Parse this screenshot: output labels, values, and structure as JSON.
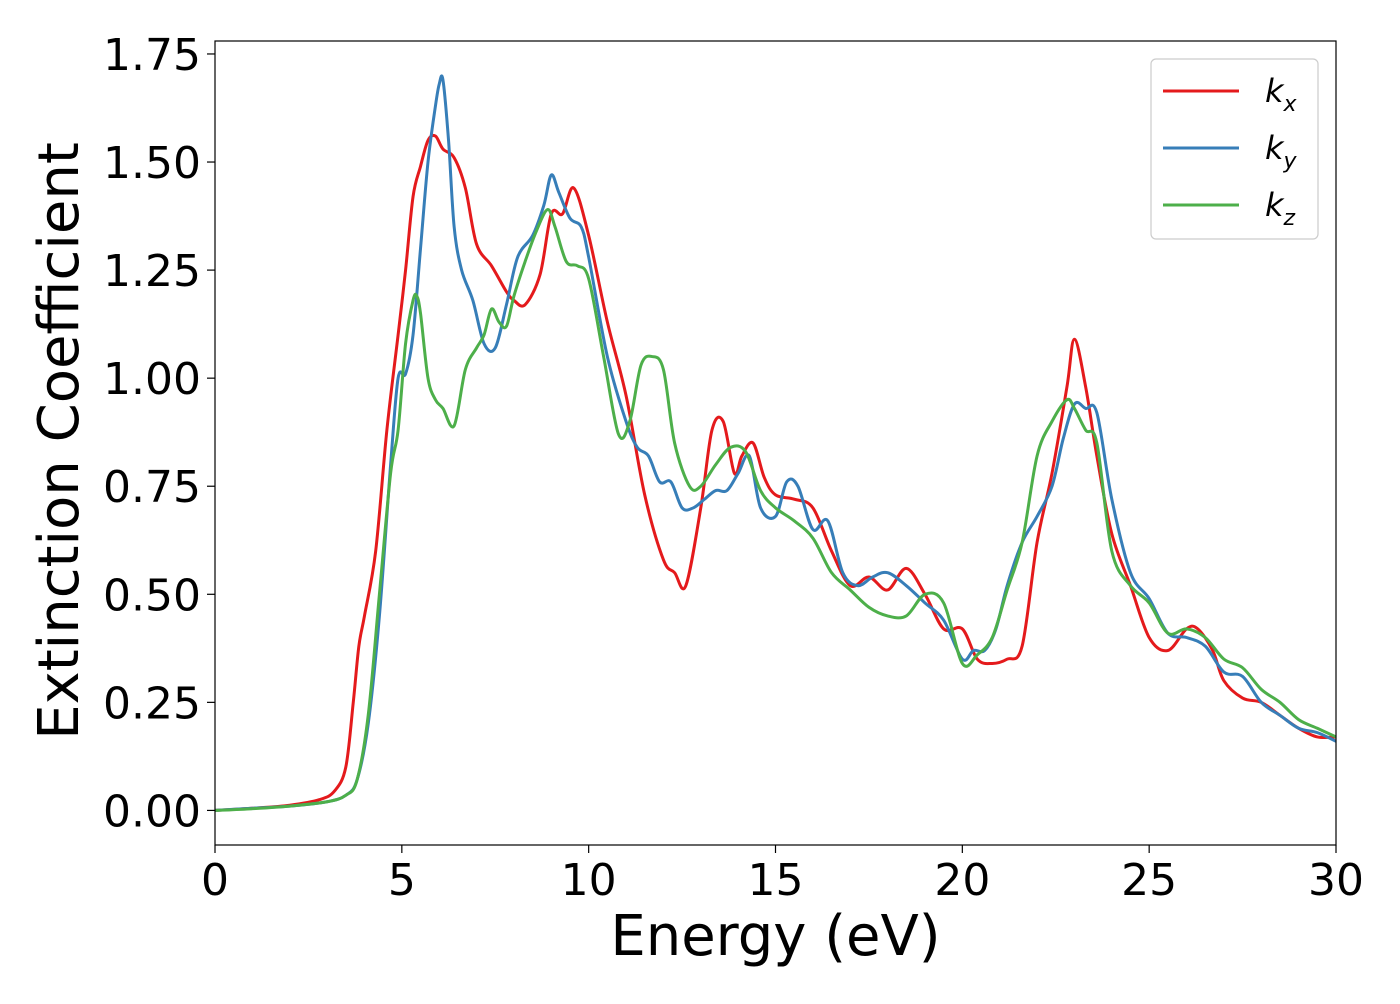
{
  "chart_data": {
    "type": "line",
    "title": "",
    "xlabel": "Energy (eV)",
    "ylabel": "Extinction Coefficient",
    "xlim": [
      0,
      30
    ],
    "ylim": [
      -0.08,
      1.78
    ],
    "xticks": [
      0,
      5,
      10,
      15,
      20,
      25,
      30
    ],
    "xtick_labels": [
      "0",
      "5",
      "10",
      "15",
      "20",
      "25",
      "30"
    ],
    "yticks": [
      0.0,
      0.25,
      0.5,
      0.75,
      1.0,
      1.25,
      1.5,
      1.75
    ],
    "ytick_labels": [
      "0.00",
      "0.25",
      "0.50",
      "0.75",
      "1.00",
      "1.25",
      "1.50",
      "1.75"
    ],
    "grid": false,
    "legend_position": "top-right",
    "series": [
      {
        "name": "kx",
        "legend_main": "k",
        "legend_sub": "x",
        "color": "#e41a1c",
        "x": [
          0,
          1,
          2,
          2.8,
          3.2,
          3.5,
          3.7,
          3.85,
          4.0,
          4.3,
          4.6,
          4.9,
          5.1,
          5.3,
          5.5,
          5.7,
          5.9,
          6.1,
          6.4,
          6.7,
          7.0,
          7.4,
          7.8,
          8.0,
          8.3,
          8.7,
          9.0,
          9.3,
          9.6,
          10.0,
          10.5,
          11.0,
          11.5,
          12.0,
          12.3,
          12.6,
          13.0,
          13.3,
          13.6,
          13.9,
          14.1,
          14.4,
          14.7,
          15.0,
          15.5,
          16.0,
          16.5,
          17.0,
          17.5,
          18.0,
          18.5,
          19.0,
          19.5,
          20.0,
          20.4,
          20.8,
          21.2,
          21.6,
          22.0,
          22.4,
          22.8,
          23.0,
          23.3,
          23.6,
          24.0,
          24.5,
          25.0,
          25.5,
          26.0,
          26.3,
          26.7,
          27.0,
          27.5,
          28.0,
          28.5,
          29.0,
          29.5,
          30.0
        ],
        "values": [
          0.0,
          0.005,
          0.012,
          0.025,
          0.045,
          0.1,
          0.25,
          0.38,
          0.45,
          0.6,
          0.88,
          1.1,
          1.25,
          1.42,
          1.49,
          1.55,
          1.56,
          1.53,
          1.51,
          1.44,
          1.31,
          1.26,
          1.2,
          1.18,
          1.17,
          1.24,
          1.38,
          1.38,
          1.44,
          1.33,
          1.13,
          0.96,
          0.73,
          0.58,
          0.55,
          0.52,
          0.7,
          0.88,
          0.9,
          0.78,
          0.82,
          0.85,
          0.77,
          0.73,
          0.72,
          0.7,
          0.6,
          0.52,
          0.54,
          0.51,
          0.56,
          0.5,
          0.42,
          0.42,
          0.35,
          0.34,
          0.35,
          0.38,
          0.62,
          0.78,
          0.98,
          1.09,
          0.98,
          0.82,
          0.64,
          0.52,
          0.4,
          0.37,
          0.42,
          0.42,
          0.37,
          0.3,
          0.26,
          0.25,
          0.22,
          0.19,
          0.17,
          0.17
        ]
      },
      {
        "name": "ky",
        "legend_main": "k",
        "legend_sub": "y",
        "color": "#377eb8",
        "x": [
          0,
          1,
          2,
          3.0,
          3.5,
          3.8,
          4.1,
          4.4,
          4.7,
          4.9,
          5.1,
          5.3,
          5.5,
          5.7,
          5.9,
          6.0,
          6.1,
          6.25,
          6.4,
          6.6,
          6.9,
          7.2,
          7.5,
          7.8,
          8.1,
          8.5,
          8.8,
          9.0,
          9.2,
          9.5,
          9.8,
          10.0,
          10.5,
          11.0,
          11.3,
          11.6,
          11.9,
          12.2,
          12.5,
          12.8,
          13.1,
          13.4,
          13.7,
          14.0,
          14.3,
          14.6,
          15.0,
          15.3,
          15.6,
          16.0,
          16.4,
          16.8,
          17.2,
          17.6,
          18.0,
          18.5,
          19.0,
          19.5,
          20.0,
          20.3,
          20.6,
          20.9,
          21.2,
          21.6,
          22.0,
          22.4,
          22.7,
          23.0,
          23.3,
          23.6,
          24.0,
          24.5,
          25.0,
          25.5,
          26.0,
          26.5,
          27.0,
          27.5,
          28.0,
          28.5,
          29.0,
          29.5,
          30.0
        ],
        "values": [
          0.0,
          0.005,
          0.01,
          0.02,
          0.035,
          0.07,
          0.2,
          0.45,
          0.8,
          1.0,
          1.01,
          1.1,
          1.3,
          1.5,
          1.63,
          1.68,
          1.69,
          1.55,
          1.35,
          1.25,
          1.18,
          1.08,
          1.07,
          1.17,
          1.28,
          1.33,
          1.4,
          1.47,
          1.43,
          1.37,
          1.35,
          1.28,
          1.05,
          0.9,
          0.84,
          0.82,
          0.76,
          0.76,
          0.7,
          0.7,
          0.72,
          0.74,
          0.74,
          0.78,
          0.82,
          0.7,
          0.68,
          0.76,
          0.75,
          0.65,
          0.67,
          0.55,
          0.52,
          0.54,
          0.55,
          0.52,
          0.48,
          0.44,
          0.35,
          0.37,
          0.37,
          0.42,
          0.52,
          0.62,
          0.68,
          0.75,
          0.86,
          0.94,
          0.93,
          0.92,
          0.72,
          0.55,
          0.49,
          0.41,
          0.4,
          0.38,
          0.32,
          0.31,
          0.25,
          0.22,
          0.19,
          0.18,
          0.16
        ]
      },
      {
        "name": "kz",
        "legend_main": "k",
        "legend_sub": "z",
        "color": "#4daf4a",
        "x": [
          0,
          1,
          2,
          3.0,
          3.5,
          3.8,
          4.1,
          4.4,
          4.7,
          4.9,
          5.1,
          5.3,
          5.4,
          5.5,
          5.7,
          5.9,
          6.1,
          6.4,
          6.7,
          7.0,
          7.2,
          7.4,
          7.6,
          7.8,
          8.0,
          8.3,
          8.6,
          8.9,
          9.1,
          9.4,
          9.7,
          10.0,
          10.4,
          10.8,
          11.1,
          11.4,
          11.7,
          12.0,
          12.3,
          12.7,
          13.0,
          13.4,
          13.8,
          14.2,
          14.6,
          15.0,
          15.5,
          16.0,
          16.5,
          17.0,
          17.5,
          18.0,
          18.5,
          19.0,
          19.5,
          20.0,
          20.4,
          20.8,
          21.2,
          21.6,
          22.0,
          22.4,
          22.8,
          23.0,
          23.3,
          23.6,
          24.0,
          24.5,
          25.0,
          25.5,
          26.0,
          26.5,
          27.0,
          27.5,
          28.0,
          28.5,
          29.0,
          29.5,
          30.0
        ],
        "values": [
          0.0,
          0.004,
          0.01,
          0.02,
          0.035,
          0.07,
          0.22,
          0.5,
          0.78,
          0.88,
          1.08,
          1.18,
          1.19,
          1.15,
          1.0,
          0.95,
          0.93,
          0.89,
          1.02,
          1.07,
          1.1,
          1.16,
          1.13,
          1.12,
          1.19,
          1.27,
          1.34,
          1.39,
          1.35,
          1.27,
          1.26,
          1.23,
          1.05,
          0.87,
          0.9,
          1.03,
          1.05,
          1.02,
          0.85,
          0.75,
          0.75,
          0.8,
          0.84,
          0.83,
          0.74,
          0.7,
          0.67,
          0.63,
          0.55,
          0.51,
          0.47,
          0.45,
          0.45,
          0.5,
          0.48,
          0.34,
          0.36,
          0.4,
          0.51,
          0.62,
          0.82,
          0.9,
          0.95,
          0.93,
          0.88,
          0.85,
          0.6,
          0.52,
          0.48,
          0.41,
          0.42,
          0.4,
          0.35,
          0.33,
          0.28,
          0.25,
          0.21,
          0.19,
          0.17
        ]
      }
    ]
  }
}
